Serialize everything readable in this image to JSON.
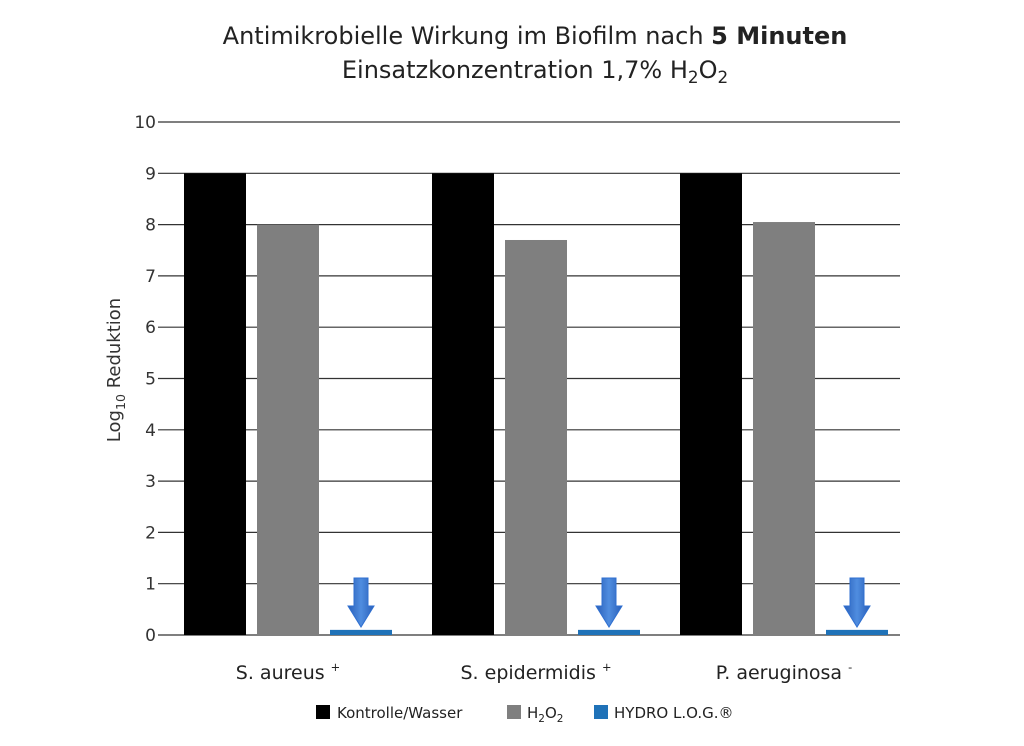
{
  "chart_data": {
    "type": "bar",
    "title": {
      "line1_prefix": "Antimikrobielle Wirkung im Biofilm nach ",
      "line1_bold": "5 Minuten",
      "line2_prefix": "Einsatzkonzentration 1,7% H",
      "line2_sub1": "2",
      "line2_mid": "O",
      "line2_sub2": "2"
    },
    "ylabel": {
      "prefix": "Log",
      "sub": "10",
      "suffix": " Reduktion"
    },
    "ylim": [
      0,
      10
    ],
    "yticks": [
      "0",
      "1",
      "2",
      "3",
      "4",
      "5",
      "6",
      "7",
      "8",
      "9",
      "10"
    ],
    "grid": true,
    "legend_position": "bottom",
    "categories": [
      {
        "name": "S. aureus",
        "sup": "+"
      },
      {
        "name": "S. epidermidis",
        "sup": "+"
      },
      {
        "name": "P. aeruginosa",
        "sup": "-"
      }
    ],
    "series": [
      {
        "legend": {
          "text": "Kontrolle/Wasser"
        },
        "color": "#000000",
        "values": [
          9,
          9,
          9
        ]
      },
      {
        "legend": {
          "prefix": "H",
          "sub1": "2",
          "mid": "O",
          "sub2": "2"
        },
        "color": "#7f7f7f",
        "values": [
          8.0,
          7.7,
          8.05
        ]
      },
      {
        "legend": {
          "text": "HYDRO L.O.G.®"
        },
        "color": "#1f72b8",
        "values": [
          0.1,
          0.1,
          0.1
        ]
      }
    ],
    "annotations": {
      "arrow_icon": "down-arrow-icon",
      "arrow_color": "#2f6fd0"
    }
  }
}
